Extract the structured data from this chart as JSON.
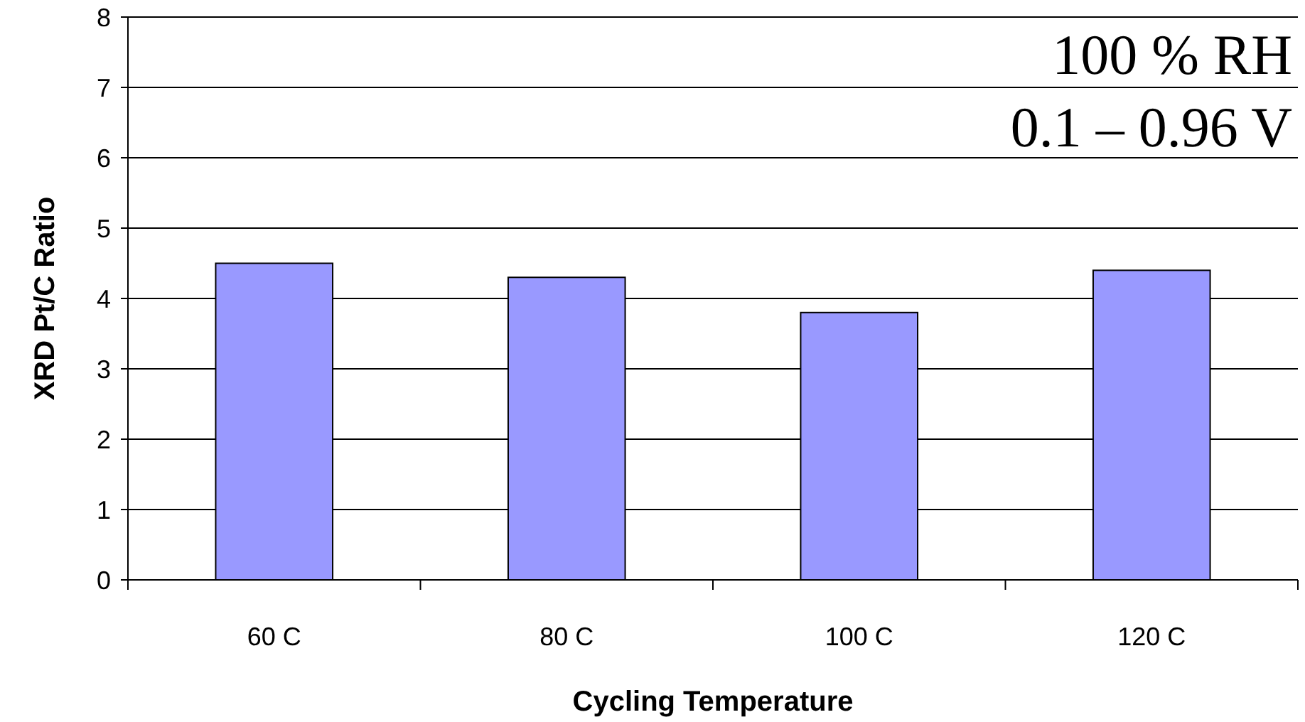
{
  "chart_data": {
    "type": "bar",
    "xlabel": "Cycling Temperature",
    "ylabel": "XRD Pt/C Ratio",
    "categories": [
      "60 C",
      "80 C",
      "100 C",
      "120 C"
    ],
    "values": [
      4.5,
      4.3,
      3.8,
      4.4
    ],
    "color": "#9999ff",
    "ylim": [
      0,
      8
    ],
    "yticks": [
      0,
      1,
      2,
      3,
      4,
      5,
      6,
      7,
      8
    ],
    "grid": "y",
    "annotations": [
      "100 % RH",
      "0.1 – 0.96 V"
    ]
  }
}
